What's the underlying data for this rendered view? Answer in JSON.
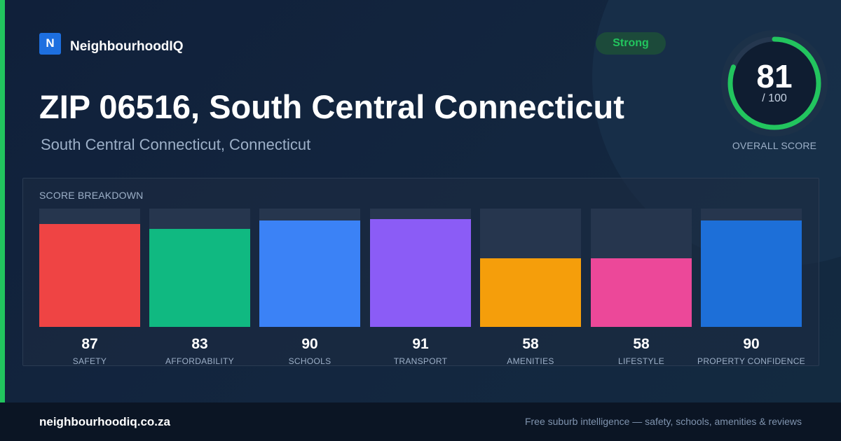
{
  "brand": {
    "logo_letter": "N",
    "name": "NeighbourhoodIQ"
  },
  "badge": {
    "label": "Strong",
    "color": "#22c55e"
  },
  "header": {
    "title": "ZIP 06516, South Central Connecticut",
    "subtitle": "South Central Connecticut, Connecticut"
  },
  "overall_score": {
    "value": "81",
    "max_label": "/ 100",
    "label": "OVERALL SCORE",
    "fraction": 0.81,
    "ring_color": "#22c55e"
  },
  "breakdown": {
    "title": "SCORE BREAKDOWN",
    "items": [
      {
        "label": "SAFETY",
        "value": "87",
        "score": 87,
        "color": "#ef4444"
      },
      {
        "label": "AFFORDABILITY",
        "value": "83",
        "score": 83,
        "color": "#10b981"
      },
      {
        "label": "SCHOOLS",
        "value": "90",
        "score": 90,
        "color": "#3b82f6"
      },
      {
        "label": "TRANSPORT",
        "value": "91",
        "score": 91,
        "color": "#8b5cf6"
      },
      {
        "label": "AMENITIES",
        "value": "58",
        "score": 58,
        "color": "#f59e0b"
      },
      {
        "label": "LIFESTYLE",
        "value": "58",
        "score": 58,
        "color": "#ec4899"
      },
      {
        "label": "PROPERTY CONFIDENCE",
        "value": "90",
        "score": 90,
        "color": "#1d6fd8"
      }
    ]
  },
  "footer": {
    "domain": "neighbourhoodiq.co.za",
    "tagline": "Free suburb intelligence — safety, schools, amenities & reviews"
  }
}
